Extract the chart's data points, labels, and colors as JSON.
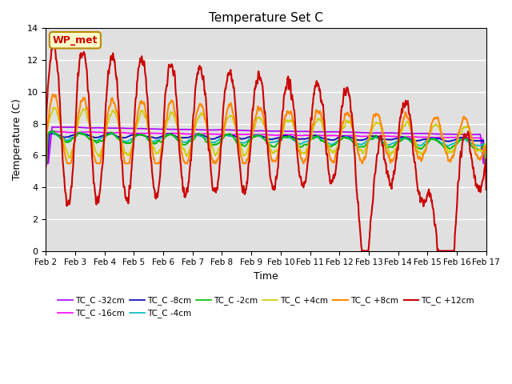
{
  "title": "Temperature Set C",
  "xlabel": "Time",
  "ylabel": "Temperature (C)",
  "ylim": [
    0,
    14
  ],
  "yticks": [
    0,
    2,
    4,
    6,
    8,
    10,
    12,
    14
  ],
  "date_labels": [
    "Feb 2",
    "Feb 3",
    "Feb 4",
    "Feb 5",
    "Feb 6",
    "Feb 7",
    "Feb 8",
    "Feb 9",
    "Feb 10",
    "Feb 11",
    "Feb 12",
    "Feb 13",
    "Feb 14",
    "Feb 15",
    "Feb 16",
    "Feb 17"
  ],
  "series_order": [
    "TC_C -32cm",
    "TC_C -16cm",
    "TC_C -8cm",
    "TC_C -4cm",
    "TC_C -2cm",
    "TC_C +4cm",
    "TC_C +8cm",
    "TC_C +12cm"
  ],
  "series": {
    "TC_C -32cm": {
      "color": "#aa00ff",
      "lw": 1.2
    },
    "TC_C -16cm": {
      "color": "#ff00ff",
      "lw": 1.2
    },
    "TC_C -8cm": {
      "color": "#0000bb",
      "lw": 1.2
    },
    "TC_C -4cm": {
      "color": "#00bbbb",
      "lw": 1.2
    },
    "TC_C -2cm": {
      "color": "#00bb00",
      "lw": 1.2
    },
    "TC_C +4cm": {
      "color": "#cccc00",
      "lw": 1.2
    },
    "TC_C +8cm": {
      "color": "#ff8800",
      "lw": 1.5
    },
    "TC_C +12cm": {
      "color": "#cc0000",
      "lw": 1.5
    }
  },
  "annotation_text": "WP_met",
  "annotation_color": "#cc0000",
  "annotation_bg": "#ffffcc",
  "annotation_border": "#bb8800",
  "plot_bg": "#e0e0e0"
}
